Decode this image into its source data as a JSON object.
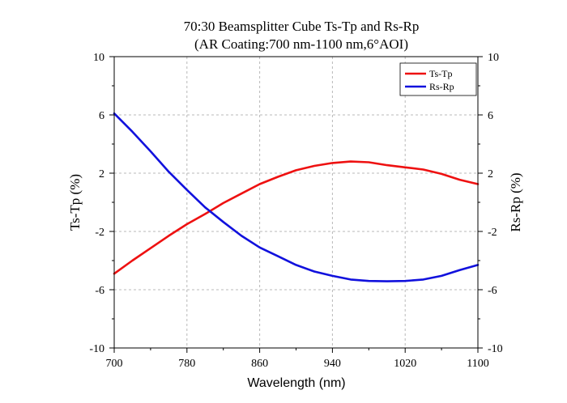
{
  "chart_data": {
    "type": "line",
    "title": "70:30 Beamsplitter Cube Ts-Tp and Rs-Rp",
    "subtitle": "(AR Coating:700 nm-1100 nm,6°AOI)",
    "xlabel": "Wavelength (nm)",
    "ylabel": "Ts-Tp (%)",
    "ylabel_right": "Rs-Rp (%)",
    "xlim": [
      700,
      1100
    ],
    "ylim": [
      -10,
      10
    ],
    "x_ticks": [
      700,
      780,
      860,
      940,
      1020,
      1100
    ],
    "y_ticks": [
      -10,
      -6,
      -2,
      2,
      6,
      10
    ],
    "y_tick_labels": [
      "-10",
      "-6",
      "-2",
      "2",
      "6",
      "10"
    ],
    "grid": true,
    "legend_position": "top-right",
    "series": [
      {
        "name": "Ts-Tp",
        "color": "#ee1111",
        "x": [
          700,
          720,
          740,
          760,
          780,
          800,
          820,
          840,
          860,
          880,
          900,
          920,
          940,
          960,
          980,
          1000,
          1020,
          1040,
          1060,
          1080,
          1100
        ],
        "y": [
          -4.9,
          -4.0,
          -3.15,
          -2.3,
          -1.5,
          -0.8,
          -0.05,
          0.6,
          1.25,
          1.75,
          2.2,
          2.5,
          2.7,
          2.8,
          2.75,
          2.55,
          2.4,
          2.25,
          1.95,
          1.55,
          1.25
        ]
      },
      {
        "name": "Rs-Rp",
        "color": "#1111dd",
        "x": [
          700,
          720,
          740,
          760,
          780,
          800,
          820,
          840,
          860,
          880,
          900,
          920,
          940,
          960,
          980,
          1000,
          1020,
          1040,
          1060,
          1080,
          1100
        ],
        "y": [
          6.1,
          4.85,
          3.5,
          2.1,
          0.85,
          -0.35,
          -1.35,
          -2.3,
          -3.1,
          -3.7,
          -4.3,
          -4.75,
          -5.05,
          -5.3,
          -5.4,
          -5.42,
          -5.4,
          -5.3,
          -5.05,
          -4.65,
          -4.3
        ]
      }
    ]
  }
}
